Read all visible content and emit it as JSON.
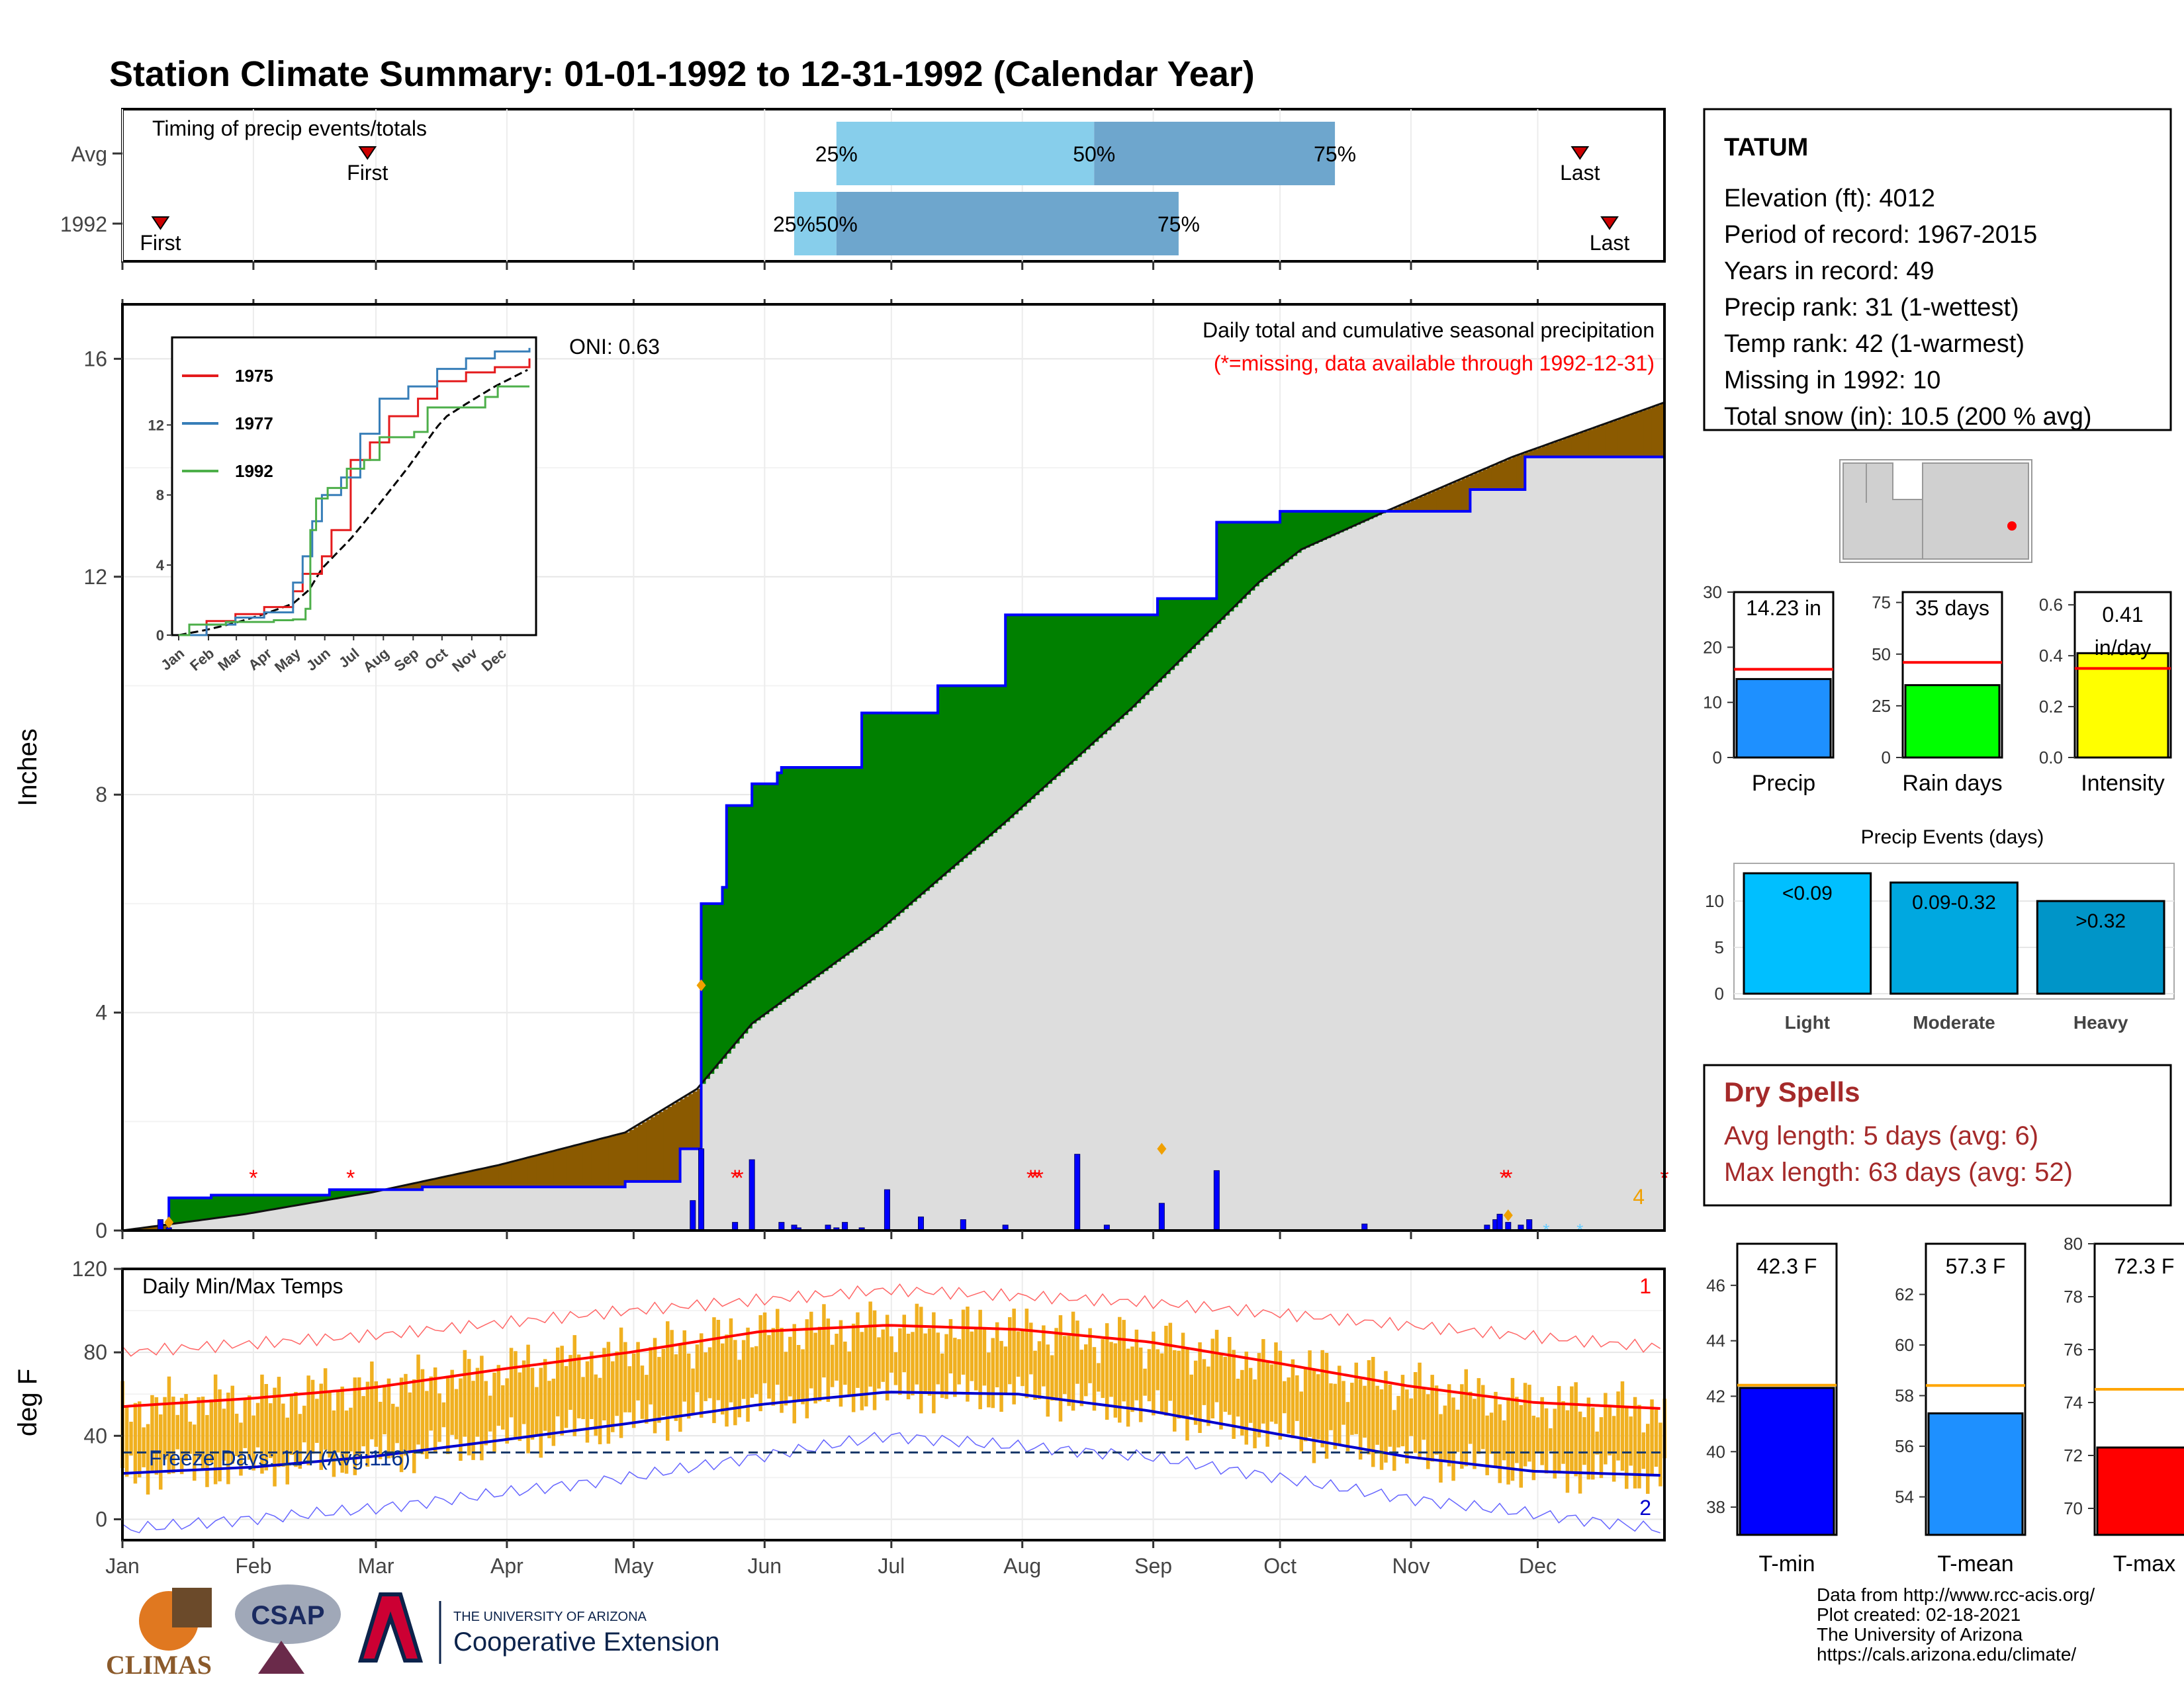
{
  "title": "Station Climate Summary: 01-01-1992 to 12-31-1992 (Calendar Year)",
  "colors": {
    "title": "#000080",
    "precip_line": "#0000ff",
    "green": "#008000",
    "brown": "#8b5a00",
    "gray": "#dddddd",
    "temp_bar": "#f0b020",
    "tmax_avg": "#ff0000",
    "tmin_avg": "#0000cc",
    "dry": "#a52a2a"
  },
  "timing": {
    "title": "Timing of precip events/totals",
    "rows": [
      {
        "label": "Avg",
        "first_label": "First",
        "last_label": "Last",
        "first_day": 59,
        "last_day": 346,
        "q25": 170,
        "q50": 231,
        "q75": 288,
        "q25_label": "25%",
        "q50_label": "50%",
        "q75_label": "75%"
      },
      {
        "label": "1992",
        "first_label": "First",
        "last_label": "Last",
        "first_day": 10,
        "last_day": 353,
        "q25": 160,
        "q50": 170,
        "q75": 251,
        "q25_label": "25%",
        "q50_label": "50%",
        "q75_label": "75%"
      }
    ]
  },
  "main": {
    "ylabel": "Inches",
    "note1": "Daily total and cumulative seasonal precipitation",
    "note2": "(*=missing, data available through 1992-12-31)",
    "oni": "ONI: 0.63",
    "count_label": "4",
    "month_labels": [
      "Jan",
      "Feb",
      "Mar",
      "Apr",
      "May",
      "Jun",
      "Jul",
      "Aug",
      "Sep",
      "Oct",
      "Nov",
      "Dec"
    ],
    "y_ticks": [
      "0",
      "4",
      "8",
      "12",
      "16"
    ]
  },
  "inset": {
    "y_ticks": [
      "0",
      "4",
      "8",
      "12"
    ],
    "month_labels": [
      "Jan",
      "Feb",
      "Mar",
      "Apr",
      "May",
      "Jun",
      "Jul",
      "Aug",
      "Sep",
      "Oct",
      "Nov",
      "Dec"
    ],
    "legend": [
      {
        "name": "1975",
        "color": "#e41a1c"
      },
      {
        "name": "1977",
        "color": "#377eb8"
      },
      {
        "name": "1992",
        "color": "#4daf4a"
      }
    ]
  },
  "temps": {
    "title": "Daily Min/Max Temps",
    "ylabel": "deg F",
    "freeze_label": "Freeze Days: 114 (Avg:116)",
    "top_count": "1",
    "bottom_count": "2",
    "y_ticks": [
      "0",
      "40",
      "80",
      "120"
    ]
  },
  "info": {
    "station": "TATUM",
    "lines": [
      "Elevation (ft): 4012",
      "Period of record: 1967-2015",
      "Years in record: 49",
      "Precip rank: 31 (1-wettest)",
      "Temp rank: 42 (1-warmest)",
      "Missing in 1992: 10",
      "Total snow (in): 10.5 (200 % avg)"
    ]
  },
  "mini_bars": [
    {
      "name": "Precip",
      "value": 14.23,
      "value_label": "14.23 in",
      "avg": 16,
      "ymax": 30,
      "ticks": [
        "0",
        "10",
        "20",
        "30"
      ],
      "tick_vals": [
        0,
        10,
        20,
        30
      ],
      "color": "#1e90ff"
    },
    {
      "name": "Rain days",
      "value": 35,
      "value_label": "35 days",
      "avg": 46,
      "ymax": 80,
      "ticks": [
        "0",
        "25",
        "50",
        "75"
      ],
      "tick_vals": [
        0,
        25,
        50,
        75
      ],
      "color": "#00ff00"
    },
    {
      "name": "Intensity",
      "value": 0.41,
      "value_label": "0.41 in/day",
      "avg": 0.35,
      "ymax": 0.65,
      "ticks": [
        "0.0",
        "0.2",
        "0.4",
        "0.6"
      ],
      "tick_vals": [
        0,
        0.2,
        0.4,
        0.6
      ],
      "color": "#ffff00"
    }
  ],
  "events": {
    "title": "Precip Events (days)",
    "categories": [
      "Light",
      "Moderate",
      "Heavy"
    ],
    "values": [
      13,
      12,
      10
    ],
    "labels": [
      "<0.09",
      "0.09-0.32",
      ">0.32"
    ],
    "colors": [
      "#00bfff",
      "#00a8e0",
      "#0095c8"
    ],
    "ticks": [
      "0",
      "5",
      "10"
    ],
    "tick_vals": [
      0,
      5,
      10
    ],
    "ymax": 13.5
  },
  "dry_spells": {
    "title": "Dry Spells",
    "line1": "Avg length: 5 days (avg: 6)",
    "line2": "Max length: 63 days (avg: 52)"
  },
  "temp_bars": [
    {
      "name": "T-min",
      "value": 42.3,
      "value_label": "42.3 F",
      "avg": 42.4,
      "ymin": 37,
      "ymax": 47.5,
      "ticks": [
        "38",
        "40",
        "42",
        "44",
        "46"
      ],
      "tick_vals": [
        38,
        40,
        42,
        44,
        46
      ],
      "color": "#0000ff"
    },
    {
      "name": "T-mean",
      "value": 57.3,
      "value_label": "57.3 F",
      "avg": 58.4,
      "ymin": 52.5,
      "ymax": 64,
      "ticks": [
        "54",
        "56",
        "58",
        "60",
        "62"
      ],
      "tick_vals": [
        54,
        56,
        58,
        60,
        62
      ],
      "color": "#1e90ff"
    },
    {
      "name": "T-max",
      "value": 72.3,
      "value_label": "72.3 F",
      "avg": 74.5,
      "ymin": 69,
      "ymax": 80,
      "ticks": [
        "70",
        "72",
        "74",
        "76",
        "78",
        "80"
      ],
      "tick_vals": [
        70,
        72,
        74,
        76,
        78,
        80
      ],
      "color": "#ff0000"
    }
  ],
  "footer": {
    "lines": [
      "Data from http://www.rcc-acis.org/",
      "Plot created: 02-18-2021",
      "The University of Arizona",
      "https://cals.arizona.edu/climate/"
    ],
    "logo_climas": "CLIMAS",
    "logo_csap": "CSAP",
    "logo_ua_small": "THE UNIVERSITY OF ARIZONA",
    "logo_ua_big": "Cooperative Extension"
  },
  "chart_data": [
    {
      "type": "area",
      "title": "Daily total and cumulative seasonal precipitation",
      "ylabel": "Inches",
      "ylim": [
        0,
        17
      ],
      "x_unit": "day of year 1992",
      "cumulative_1992": {
        "x": [
          1,
          12,
          22,
          50,
          72,
          120,
          133,
          137,
          138,
          143,
          144,
          150,
          156,
          157,
          176,
          186,
          194,
          210,
          227,
          246,
          260,
          275,
          288,
          313,
          320,
          333,
          366
        ],
        "y": [
          0.0,
          0.6,
          0.65,
          0.75,
          0.8,
          0.9,
          1.5,
          1.5,
          6.0,
          6.3,
          7.8,
          8.2,
          8.4,
          8.5,
          9.5,
          9.5,
          10.0,
          11.3,
          11.3,
          11.6,
          13.0,
          13.2,
          13.2,
          13.2,
          13.6,
          14.2,
          14.2
        ]
      },
      "cumulative_average": {
        "x": [
          1,
          30,
          60,
          90,
          120,
          137,
          150,
          180,
          210,
          240,
          270,
          280,
          300,
          330,
          366
        ],
        "y": [
          0.0,
          0.3,
          0.7,
          1.2,
          1.8,
          2.6,
          3.8,
          5.5,
          7.5,
          9.6,
          11.9,
          12.5,
          13.2,
          14.2,
          15.2
        ]
      },
      "daily_precip": {
        "x": [
          10,
          12,
          136,
          138,
          146,
          150,
          157,
          160,
          161,
          168,
          170,
          172,
          176,
          182,
          190,
          200,
          210,
          227,
          234,
          247,
          260,
          295,
          324,
          326,
          327,
          329,
          332,
          334
        ],
        "y": [
          0.2,
          0.05,
          0.55,
          1.5,
          0.15,
          1.3,
          0.15,
          0.1,
          0.05,
          0.1,
          0.05,
          0.15,
          0.05,
          0.75,
          0.25,
          0.2,
          0.1,
          1.4,
          0.1,
          0.5,
          1.1,
          0.12,
          0.1,
          0.2,
          0.3,
          0.15,
          0.1,
          0.2
        ]
      },
      "missing_days": [
        32,
        55,
        146,
        147,
        216,
        217,
        218,
        328,
        329,
        366
      ]
    },
    {
      "type": "line",
      "title": "",
      "series": [
        {
          "name": "1975",
          "x": [
            1,
            30,
            60,
            90,
            120,
            130,
            150,
            160,
            180,
            200,
            220,
            250,
            270,
            300,
            330,
            366
          ],
          "y": [
            0.0,
            0.8,
            1.2,
            1.6,
            2.5,
            3.5,
            4.5,
            6.0,
            10.0,
            11.0,
            12.5,
            13.5,
            14.5,
            15.0,
            15.3,
            15.8
          ]
        },
        {
          "name": "1977",
          "x": [
            1,
            30,
            60,
            90,
            120,
            130,
            140,
            150,
            170,
            190,
            210,
            240,
            270,
            300,
            330,
            366
          ],
          "y": [
            0.0,
            0.6,
            1.0,
            1.3,
            3.0,
            4.5,
            6.5,
            8.0,
            9.0,
            11.5,
            13.5,
            14.2,
            15.2,
            15.8,
            16.2,
            16.4
          ]
        },
        {
          "name": "1992",
          "x": [
            1,
            12,
            50,
            100,
            120,
            133,
            138,
            144,
            156,
            176,
            194,
            210,
            246,
            260,
            320,
            333,
            366
          ],
          "y": [
            0.0,
            0.6,
            0.75,
            0.85,
            0.9,
            1.5,
            6.0,
            7.8,
            8.4,
            9.5,
            10.0,
            11.3,
            11.6,
            13.0,
            13.6,
            14.2,
            14.2
          ]
        }
      ]
    },
    {
      "type": "bar",
      "title": "Daily Min/Max Temps",
      "ylabel": "deg F",
      "ylim": [
        -10,
        120
      ],
      "freeze_threshold": 32,
      "avg_tmax": {
        "x": [
          1,
          32,
          60,
          91,
          121,
          152,
          182,
          213,
          244,
          274,
          305,
          335,
          366
        ],
        "y": [
          54,
          58,
          63,
          72,
          80,
          90,
          93,
          91,
          85,
          75,
          64,
          56,
          53
        ]
      },
      "avg_tmin": {
        "x": [
          1,
          32,
          60,
          91,
          121,
          152,
          182,
          213,
          244,
          274,
          305,
          335,
          366
        ],
        "y": [
          22,
          25,
          30,
          38,
          46,
          55,
          61,
          60,
          52,
          41,
          30,
          23,
          21
        ]
      },
      "record_high": {
        "x": [
          1,
          60,
          121,
          182,
          244,
          305,
          366
        ],
        "y": [
          80,
          88,
          100,
          110,
          104,
          93,
          82
        ]
      },
      "record_low": {
        "x": [
          1,
          60,
          121,
          182,
          244,
          305,
          366
        ],
        "y": [
          -5,
          5,
          20,
          40,
          30,
          10,
          -5
        ]
      }
    }
  ]
}
